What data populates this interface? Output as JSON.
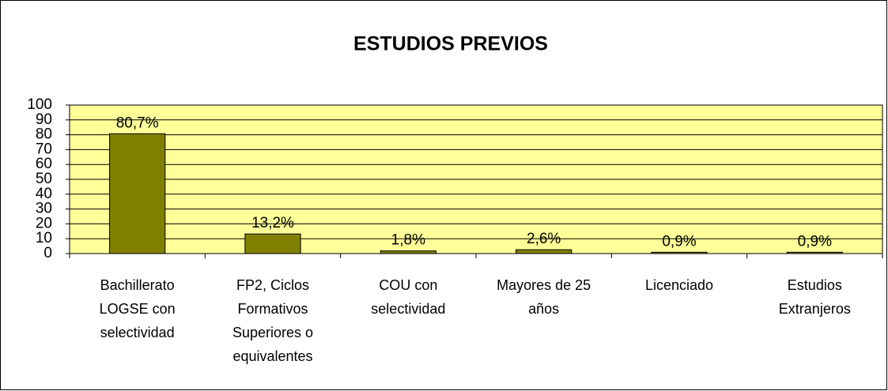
{
  "chart_data": {
    "type": "bar",
    "title": "ESTUDIOS PREVIOS",
    "categories": [
      "Bachillerato LOGSE con selectividad",
      "FP2, Ciclos Formativos Superiores o equivalentes",
      "COU con selectividad",
      "Mayores de 25 años",
      "Licenciado",
      "Estudios Extranjeros"
    ],
    "values": [
      80.7,
      13.2,
      1.8,
      2.6,
      0.9,
      0.9
    ],
    "value_labels": [
      "80,7%",
      "13,2%",
      "1,8%",
      "2,6%",
      "0,9%",
      "0,9%"
    ],
    "color": "#808000",
    "plot_background": "#ffff99",
    "ylim": [
      0,
      100
    ],
    "yticks": [
      0,
      10,
      20,
      30,
      40,
      50,
      60,
      70,
      80,
      90,
      100
    ],
    "grid": true
  }
}
